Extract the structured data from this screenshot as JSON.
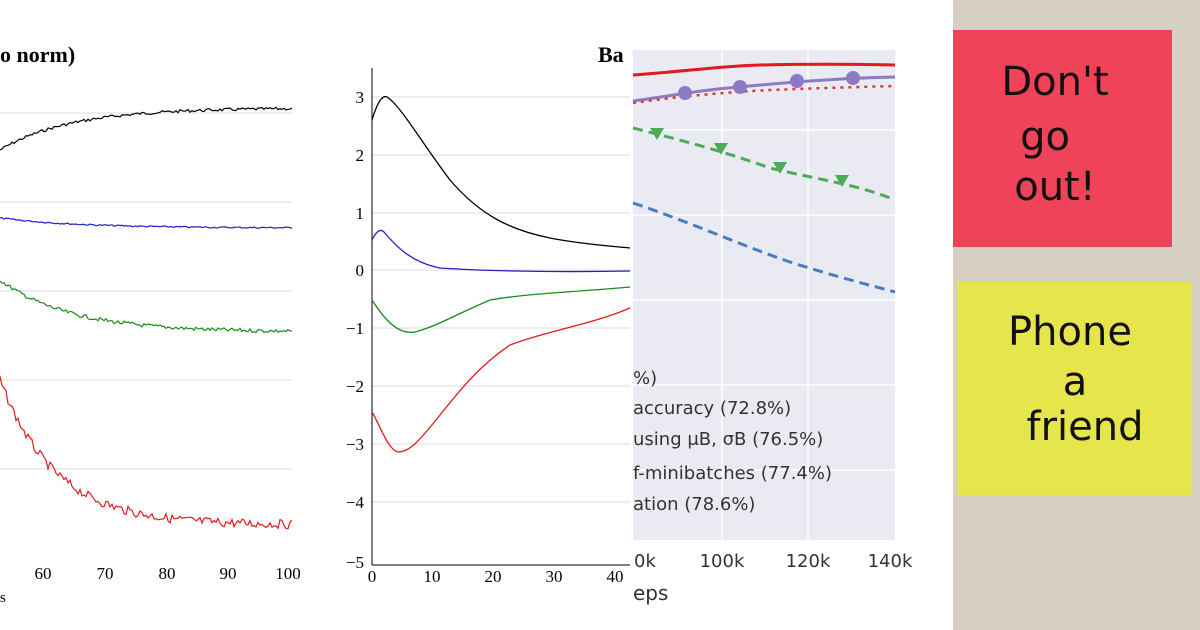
{
  "panels": [
    {
      "title": "o norm)",
      "x_ticks": [
        "60",
        "70",
        "80",
        "90",
        "100"
      ],
      "x_label": "s"
    },
    {
      "y_ticks": [
        "3",
        "2",
        "1",
        "0",
        "−1",
        "−2",
        "−3",
        "−4",
        "−5"
      ],
      "x_ticks": [
        "0",
        "10",
        "20",
        "30",
        "40"
      ]
    },
    {
      "title": "Ba",
      "legend": [
        "%)",
        "accuracy (72.8%)",
        "using μB, σB (76.5%)",
        "f-minibatches (77.4%)",
        "ation (78.6%)"
      ],
      "x_ticks": [
        "0k",
        "100k",
        "120k",
        "140k"
      ],
      "x_label": "eps"
    }
  ],
  "notes": [
    {
      "lines": [
        "Don't",
        "go",
        "out!"
      ]
    },
    {
      "lines": [
        "Phone",
        "a",
        "friend"
      ]
    }
  ]
}
